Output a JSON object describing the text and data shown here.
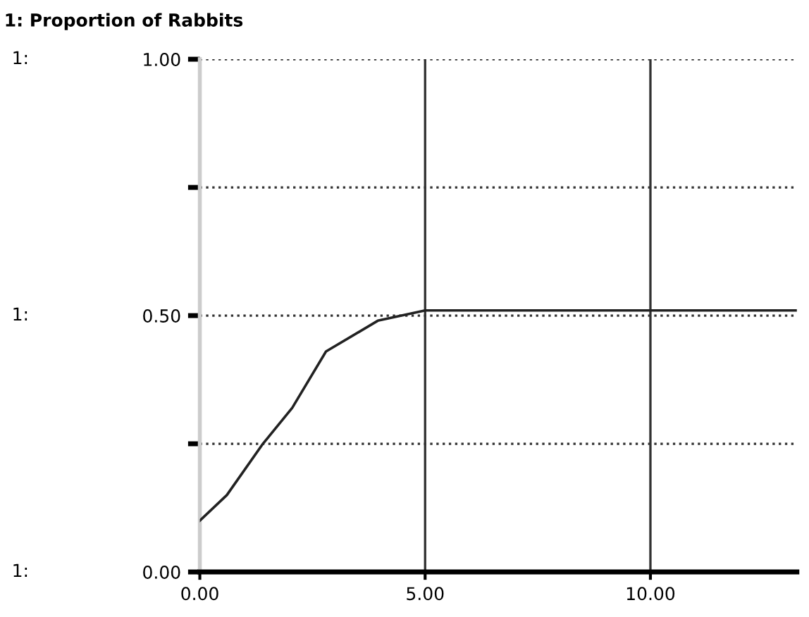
{
  "chart_data": {
    "type": "line",
    "title": "1: Proportion of Rabbits",
    "x": [
      0,
      0.6,
      1.4,
      2.05,
      2.8,
      3.95,
      5,
      7,
      10,
      13.25
    ],
    "series": [
      {
        "color": "#222222",
        "values": [
          0.1,
          0.15,
          0.25,
          0.32,
          0.43,
          0.49,
          0.51,
          0.51,
          0.51,
          0.51
        ]
      }
    ],
    "xlim": [
      0,
      13.25
    ],
    "ylim": [
      0,
      1
    ],
    "xticks": [
      {
        "value": 0,
        "label": "0.00"
      },
      {
        "value": 5,
        "label": "5.00"
      },
      {
        "value": 10,
        "label": "10.00"
      }
    ],
    "yticks": [
      {
        "value": 0,
        "label": "0.00"
      },
      {
        "value": 0.25,
        "label": null
      },
      {
        "value": 0.5,
        "label": "0.50"
      },
      {
        "value": 0.75,
        "label": null
      },
      {
        "value": 1,
        "label": "1.00"
      }
    ],
    "annotations": [
      "1:",
      "1:",
      "1:"
    ],
    "grid": true,
    "marker": "none",
    "line_style": "solid"
  }
}
